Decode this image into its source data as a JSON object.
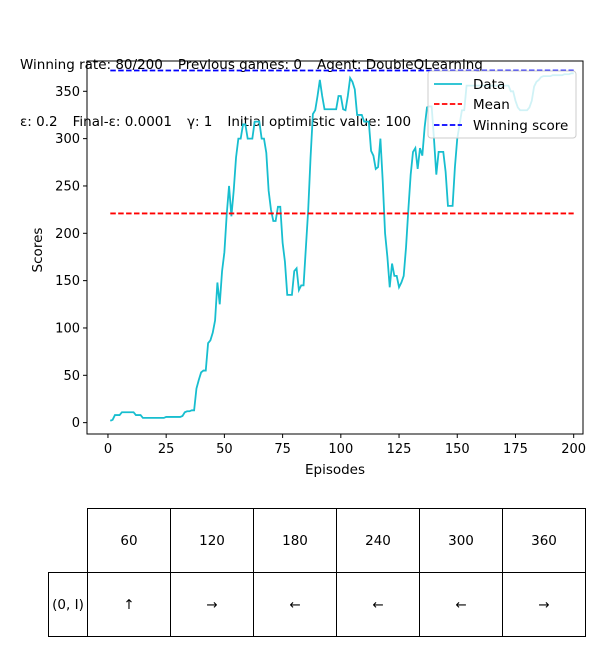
{
  "header": {
    "winning_rate": "Winning rate: 80/200",
    "previous_games": "Previous games: 0",
    "agent": "Agent: DoubleQLearning",
    "epsilon": "ε: 0.2",
    "final_epsilon": "Final-ε: 0.0001",
    "gamma": "γ: 1",
    "optimistic": "Initial optimistic value: 100"
  },
  "chart_data": {
    "type": "line",
    "xlabel": "Episodes",
    "ylabel": "Scores",
    "xlim": [
      -9,
      204
    ],
    "ylim": [
      -12,
      382
    ],
    "xticks": [
      0,
      25,
      50,
      75,
      100,
      125,
      150,
      175,
      200
    ],
    "yticks": [
      0,
      50,
      100,
      150,
      200,
      250,
      300,
      350
    ],
    "grid": false,
    "legend_position": "top-right",
    "colors": {
      "data": "#17becf",
      "mean": "#ff0000",
      "winning": "#0000ff"
    },
    "series": [
      {
        "name": "Data",
        "x": [
          1,
          2,
          3,
          4,
          5,
          6,
          7,
          8,
          9,
          10,
          11,
          12,
          13,
          14,
          15,
          16,
          17,
          18,
          19,
          20,
          21,
          22,
          23,
          24,
          25,
          26,
          27,
          28,
          29,
          30,
          31,
          32,
          33,
          34,
          35,
          36,
          37,
          38,
          39,
          40,
          41,
          42,
          43,
          44,
          45,
          46,
          47,
          48,
          49,
          50,
          51,
          52,
          53,
          54,
          55,
          56,
          57,
          58,
          59,
          60,
          61,
          62,
          63,
          64,
          65,
          66,
          67,
          68,
          69,
          70,
          71,
          72,
          73,
          74,
          75,
          76,
          77,
          78,
          79,
          80,
          81,
          82,
          83,
          84,
          85,
          86,
          87,
          88,
          89,
          90,
          91,
          92,
          93,
          94,
          95,
          96,
          97,
          98,
          99,
          100,
          101,
          102,
          103,
          104,
          105,
          106,
          107,
          108,
          109,
          110,
          111,
          112,
          113,
          114,
          115,
          116,
          117,
          118,
          119,
          120,
          121,
          122,
          123,
          124,
          125,
          126,
          127,
          128,
          129,
          130,
          131,
          132,
          133,
          134,
          135,
          136,
          137,
          138,
          139,
          140,
          141,
          142,
          143,
          144,
          145,
          146,
          147,
          148,
          149,
          150,
          151,
          152,
          153,
          154,
          155,
          156,
          157,
          158,
          159,
          160,
          161,
          162,
          163,
          164,
          165,
          166,
          167,
          168,
          169,
          170,
          171,
          172,
          173,
          174,
          175,
          176,
          177,
          178,
          179,
          180,
          181,
          182,
          183,
          184,
          185,
          186,
          187,
          188,
          189,
          190,
          191,
          192,
          193,
          194,
          195,
          196,
          197,
          198,
          199,
          200
        ],
        "y": [
          2,
          3,
          8,
          8,
          8,
          11,
          11,
          11,
          11,
          11,
          11,
          8,
          8,
          8,
          5,
          5,
          5,
          5,
          5,
          5,
          5,
          5,
          5,
          5,
          6,
          6,
          6,
          6,
          6,
          6,
          6,
          7,
          11,
          12,
          12,
          13,
          13,
          36,
          45,
          53,
          55,
          55,
          84,
          87,
          95,
          108,
          148,
          125,
          160,
          180,
          220,
          250,
          218,
          245,
          280,
          300,
          300,
          315,
          315,
          300,
          300,
          300,
          318,
          318,
          318,
          300,
          300,
          285,
          245,
          225,
          213,
          213,
          228,
          228,
          190,
          170,
          135,
          135,
          135,
          160,
          163,
          140,
          145,
          145,
          185,
          225,
          280,
          326,
          330,
          345,
          362,
          345,
          331,
          331,
          331,
          331,
          331,
          331,
          345,
          345,
          331,
          330,
          345,
          364,
          360,
          352,
          325,
          325,
          325,
          318,
          318,
          318,
          287,
          282,
          268,
          270,
          300,
          255,
          200,
          175,
          143,
          168,
          155,
          155,
          143,
          148,
          155,
          185,
          225,
          262,
          286,
          290,
          268,
          290,
          282,
          312,
          333,
          334,
          334,
          300,
          262,
          286,
          286,
          286,
          265,
          229,
          229,
          229,
          270,
          300,
          315,
          330,
          330,
          356,
          356,
          356,
          356,
          356,
          356,
          356,
          356,
          356,
          356,
          356,
          356,
          356,
          356,
          356,
          356,
          356,
          356,
          356,
          350,
          350,
          340,
          333,
          330,
          330,
          330,
          330,
          333,
          340,
          355,
          360,
          362,
          365,
          366,
          366,
          366,
          366,
          367,
          367,
          367,
          367,
          367,
          368,
          368,
          368,
          369,
          369
        ]
      },
      {
        "name": "Mean",
        "x": [
          1,
          200
        ],
        "y": [
          221,
          221
        ]
      },
      {
        "name": "Winning score",
        "x": [
          1,
          200
        ],
        "y": [
          372,
          372
        ]
      }
    ]
  },
  "policy_table": {
    "columns": [
      "60",
      "120",
      "180",
      "240",
      "300",
      "360"
    ],
    "rows": [
      {
        "label": "(0, I)",
        "cells": [
          "↑",
          "→",
          "←",
          "←",
          "←",
          "→"
        ]
      }
    ]
  }
}
